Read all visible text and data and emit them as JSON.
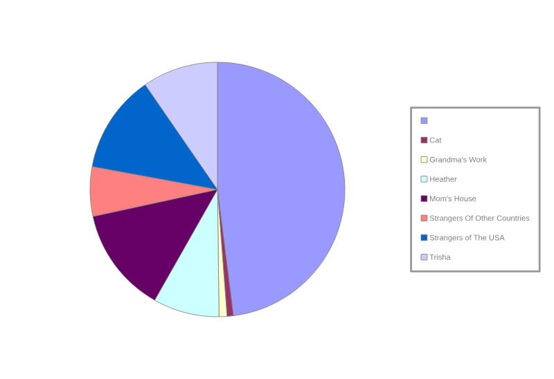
{
  "chart_data": {
    "type": "pie",
    "categories": [
      null,
      "Cat",
      "Grandma's Work",
      "Heather",
      "Mom's House",
      "Strangers Of Other Countries",
      "Strangers of The USA",
      "Trisha"
    ],
    "values": [
      48,
      0.8,
      1,
      8.4,
      13.4,
      6.3,
      12.5,
      9.6
    ],
    "colors": [
      "#9999ff",
      "#993366",
      "#ffffcc",
      "#ccffff",
      "#660066",
      "#ff8080",
      "#0066cc",
      "#ccccff"
    ],
    "legend": "right"
  }
}
